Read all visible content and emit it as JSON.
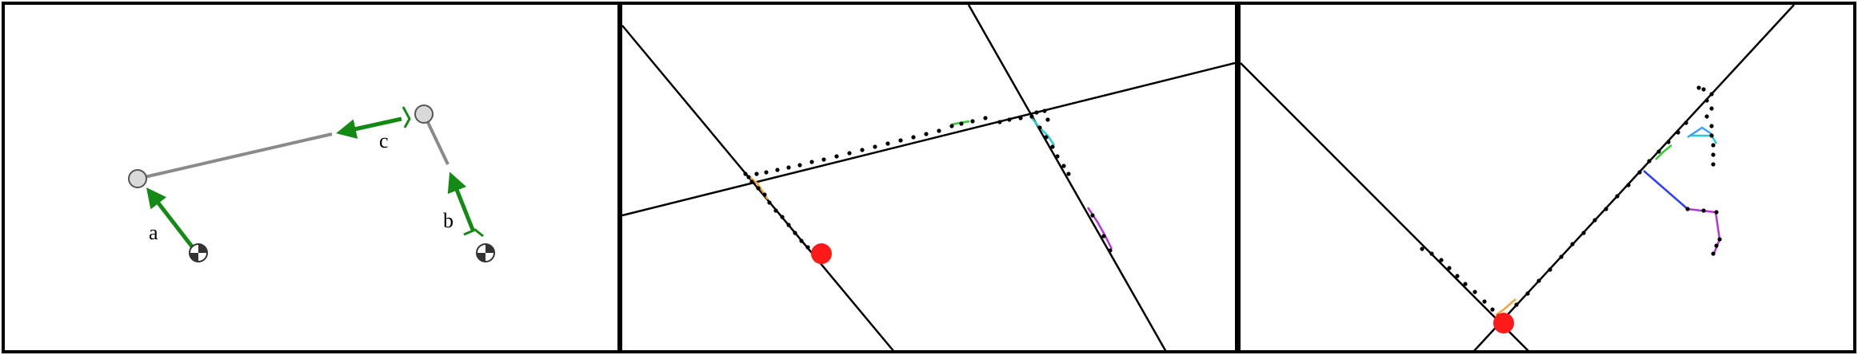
{
  "figure": {
    "panels": [
      {
        "name": "panel-a",
        "labels": {
          "a": "a",
          "b": "b",
          "c": "c"
        }
      },
      {
        "name": "panel-b"
      },
      {
        "name": "panel-c"
      }
    ]
  },
  "colors": {
    "arrow_green": "#138a13",
    "segment_gray": "#8a8a8a",
    "node_fill": "#d9d9d9",
    "node_stroke": "#555555",
    "red_marker": "#ff1a1a",
    "line_black": "#000000"
  }
}
